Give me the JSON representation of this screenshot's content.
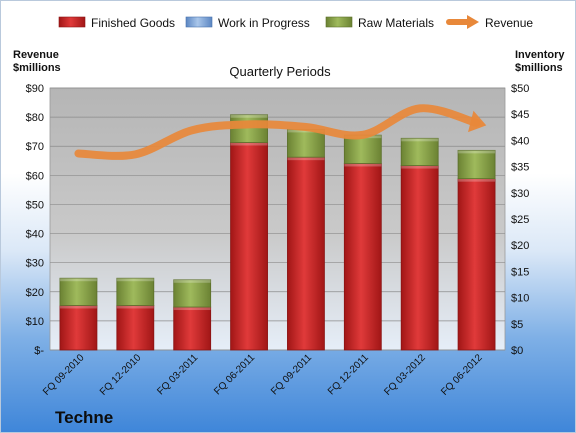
{
  "chart_data": {
    "type": "bar",
    "stacked": true,
    "title": "Quarterly Periods",
    "company": "Techne",
    "categories": [
      "FQ 09-2010",
      "FQ 12-2010",
      "FQ 03-2011",
      "FQ 06-2011",
      "FQ 09-2011",
      "FQ 12-2011",
      "FQ 03-2012",
      "FQ 06-2012"
    ],
    "left_axis": {
      "label_line1": "Revenue",
      "label_line2": "$millions",
      "ylim": [
        0,
        90
      ],
      "ticks": [
        "$-",
        "$10",
        "$20",
        "$30",
        "$40",
        "$50",
        "$60",
        "$70",
        "$80",
        "$90"
      ]
    },
    "right_axis": {
      "label_line1": "Inventory",
      "label_line2": "$millions",
      "ylim": [
        0,
        50
      ],
      "ticks": [
        "$0",
        "$5",
        "$10",
        "$15",
        "$20",
        "$25",
        "$30",
        "$35",
        "$40",
        "$45",
        "$50"
      ]
    },
    "series": [
      {
        "name": "Finished Goods",
        "axis": "right",
        "kind": "bar",
        "color": "#d42a2a",
        "values": [
          8.5,
          8.5,
          8.2,
          39.6,
          36.8,
          35.6,
          35.2,
          32.7
        ]
      },
      {
        "name": "Work in Progress",
        "axis": "right",
        "kind": "bar",
        "color": "#7fa6d6",
        "values": [
          0,
          0,
          0,
          0,
          0,
          0,
          0,
          0
        ]
      },
      {
        "name": "Raw Materials",
        "axis": "right",
        "kind": "bar",
        "color": "#8fa94f",
        "values": [
          5.2,
          5.2,
          5.2,
          5.3,
          5.3,
          5.4,
          5.2,
          5.4
        ]
      },
      {
        "name": "Revenue",
        "axis": "left",
        "kind": "line",
        "color": "#e8883a",
        "values": [
          67.5,
          67.2,
          75.5,
          77.5,
          76.6,
          73.9,
          83.0,
          78.0
        ]
      }
    ],
    "legend_position": "top",
    "grid": true
  }
}
